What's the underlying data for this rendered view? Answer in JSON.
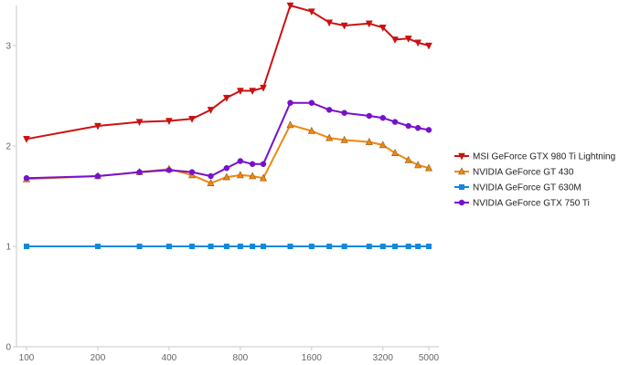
{
  "chart_data": {
    "type": "line",
    "x_scale": "log2",
    "xlim": [
      100,
      5000
    ],
    "ylim": [
      0,
      3.4
    ],
    "x_ticks": [
      100,
      200,
      400,
      800,
      1600,
      3200,
      5000
    ],
    "x_tick_labels": [
      "100",
      "200",
      "400",
      "800",
      "1600",
      "3200",
      "5000"
    ],
    "y_ticks": [
      0,
      1,
      2,
      3
    ],
    "y_tick_labels": [
      "0",
      "1",
      "2",
      "3"
    ],
    "grid": false,
    "legend_position": "right",
    "x": [
      100,
      200,
      300,
      400,
      500,
      600,
      700,
      800,
      900,
      1000,
      1300,
      1600,
      1900,
      2200,
      2800,
      3200,
      3600,
      4100,
      4500,
      5000
    ],
    "series": [
      {
        "name": "MSI GeForce GTX 980 Ti Lightning",
        "color": "#cc1111",
        "marker": "triangle-down",
        "values": [
          2.07,
          2.2,
          2.24,
          2.25,
          2.27,
          2.36,
          2.48,
          2.55,
          2.55,
          2.58,
          3.4,
          3.34,
          3.23,
          3.2,
          3.22,
          3.18,
          3.06,
          3.07,
          3.03,
          3.0
        ]
      },
      {
        "name": "NVIDIA GeForce GT 430",
        "color": "#ee8811",
        "marker": "triangle-up",
        "values": [
          1.67,
          1.7,
          1.74,
          1.77,
          1.71,
          1.63,
          1.69,
          1.71,
          1.7,
          1.68,
          2.21,
          2.15,
          2.08,
          2.06,
          2.04,
          2.01,
          1.93,
          1.86,
          1.81,
          1.78
        ]
      },
      {
        "name": "NVIDIA GeForce GT 630M",
        "color": "#1188dd",
        "marker": "square",
        "values": [
          1.0,
          1.0,
          1.0,
          1.0,
          1.0,
          1.0,
          1.0,
          1.0,
          1.0,
          1.0,
          1.0,
          1.0,
          1.0,
          1.0,
          1.0,
          1.0,
          1.0,
          1.0,
          1.0,
          1.0
        ]
      },
      {
        "name": "NVIDIA GeForce GTX 750 Ti",
        "color": "#7711cc",
        "marker": "circle",
        "values": [
          1.68,
          1.7,
          1.74,
          1.76,
          1.74,
          1.7,
          1.78,
          1.85,
          1.82,
          1.82,
          2.43,
          2.43,
          2.36,
          2.33,
          2.3,
          2.28,
          2.24,
          2.2,
          2.18,
          2.16
        ]
      }
    ]
  }
}
